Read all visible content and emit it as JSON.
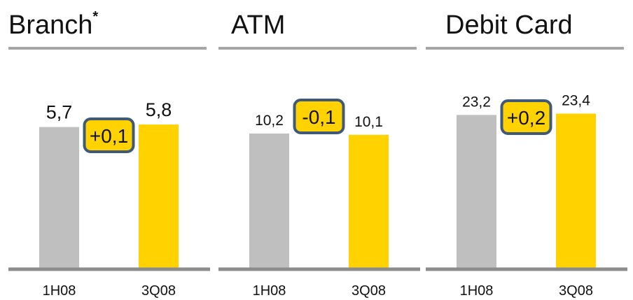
{
  "chart_data": [
    {
      "type": "bar",
      "title": "Branch",
      "title_mark": "*",
      "categories": [
        "1H08",
        "3Q08"
      ],
      "values": [
        5.7,
        5.8
      ],
      "value_labels": [
        "5,7",
        "5,8"
      ],
      "colors": [
        "#bfbfbf",
        "#ffd200"
      ],
      "ylim": [
        0,
        8
      ],
      "annotation": "+0,1"
    },
    {
      "type": "bar",
      "title": "ATM",
      "categories": [
        "1H08",
        "3Q08"
      ],
      "values": [
        10.2,
        10.1
      ],
      "value_labels": [
        "10,2",
        "10,1"
      ],
      "colors": [
        "#bfbfbf",
        "#ffd200"
      ],
      "ylim": [
        0,
        15
      ],
      "annotation": "-0,1"
    },
    {
      "type": "bar",
      "title": "Debit Card",
      "categories": [
        "1H08",
        "3Q08"
      ],
      "values": [
        23.2,
        23.4
      ],
      "value_labels": [
        "23,2",
        "23,4"
      ],
      "colors": [
        "#bfbfbf",
        "#ffd200"
      ],
      "ylim": [
        0,
        30
      ],
      "annotation": "+0,2"
    }
  ]
}
